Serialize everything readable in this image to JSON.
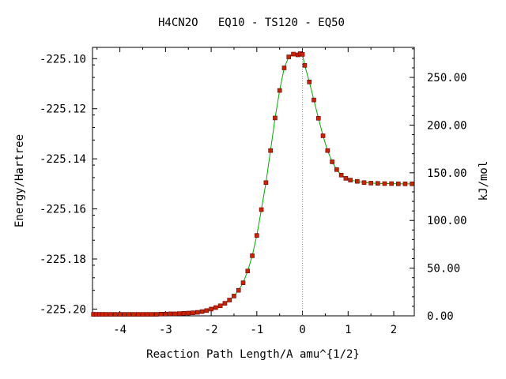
{
  "chart_data": {
    "type": "line",
    "title": "H4CN2O   EQ10 - TS120 - EQ50",
    "xlabel": "Reaction Path Length/A amu^{1/2}",
    "ylabel": "Energy/Hartree",
    "y2label": "kJ/mol",
    "xlim": [
      -4.6,
      2.45
    ],
    "ylim": [
      -225.2027,
      -225.0955
    ],
    "y2lim": [
      0.0,
      281.5
    ],
    "x_ticks": [
      -4,
      -3,
      -2,
      -1,
      0,
      1,
      2
    ],
    "x_tick_labels": [
      "-4",
      "-3",
      "-2",
      "-1",
      "0",
      "1",
      "2"
    ],
    "y_ticks": [
      -225.2,
      -225.18,
      -225.16,
      -225.14,
      -225.12,
      -225.1
    ],
    "y_tick_labels": [
      "-225.20",
      "-225.18",
      "-225.16",
      "-225.14",
      "-225.12",
      "-225.10"
    ],
    "y2_ticks": [
      0,
      50,
      100,
      150,
      200,
      250
    ],
    "y2_tick_labels": [
      "0.00",
      "50.00",
      "100.00",
      "150.00",
      "200.00",
      "250.00"
    ],
    "ts_x": 0.0,
    "grid": false,
    "colors": {
      "line": "#00aa00",
      "marker": "#cc2200",
      "marker_edge": "#660000",
      "ts_line": "#888888"
    },
    "series": [
      {
        "x": [
          -4.58,
          -4.52,
          -4.45,
          -4.38,
          -4.3,
          -4.2,
          -4.1,
          -4.0,
          -3.9,
          -3.8,
          -3.7,
          -3.6,
          -3.5,
          -3.4,
          -3.3,
          -3.2,
          -3.1,
          -3.0,
          -2.9,
          -2.8,
          -2.7,
          -2.6,
          -2.5,
          -2.4,
          -2.3,
          -2.2,
          -2.1,
          -2.0,
          -1.9,
          -1.8,
          -1.7,
          -1.6,
          -1.5,
          -1.4,
          -1.3,
          -1.2,
          -1.1,
          -1.0,
          -0.9,
          -0.8,
          -0.7,
          -0.6,
          -0.5,
          -0.4,
          -0.3,
          -0.2,
          -0.1,
          -0.05,
          0.0,
          0.05,
          0.15,
          0.25,
          0.35,
          0.45,
          0.55,
          0.65,
          0.75,
          0.85,
          0.95,
          1.05,
          1.2,
          1.35,
          1.5,
          1.65,
          1.8,
          1.95,
          2.1,
          2.25,
          2.4
        ],
        "y": [
          -225.2021,
          -225.2021,
          -225.2021,
          -225.2021,
          -225.2021,
          -225.2021,
          -225.2021,
          -225.2021,
          -225.2021,
          -225.2021,
          -225.2021,
          -225.2021,
          -225.2021,
          -225.2021,
          -225.2021,
          -225.2021,
          -225.202,
          -225.202,
          -225.2019,
          -225.2019,
          -225.2018,
          -225.2017,
          -225.2016,
          -225.2015,
          -225.2013,
          -225.201,
          -225.2006,
          -225.2,
          -225.1994,
          -225.1987,
          -225.1977,
          -225.1964,
          -225.1948,
          -225.1925,
          -225.1895,
          -225.1848,
          -225.1787,
          -225.1706,
          -225.1603,
          -225.1495,
          -225.1367,
          -225.1237,
          -225.1127,
          -225.1037,
          -225.0993,
          -225.0982,
          -225.0985,
          -225.098,
          -225.0983,
          -225.1027,
          -225.1093,
          -225.1165,
          -225.1238,
          -225.1308,
          -225.1367,
          -225.1412,
          -225.1443,
          -225.1465,
          -225.1478,
          -225.1485,
          -225.149,
          -225.1495,
          -225.1497,
          -225.1498,
          -225.1499,
          -225.1499,
          -225.15,
          -225.15,
          -225.15
        ]
      }
    ]
  }
}
